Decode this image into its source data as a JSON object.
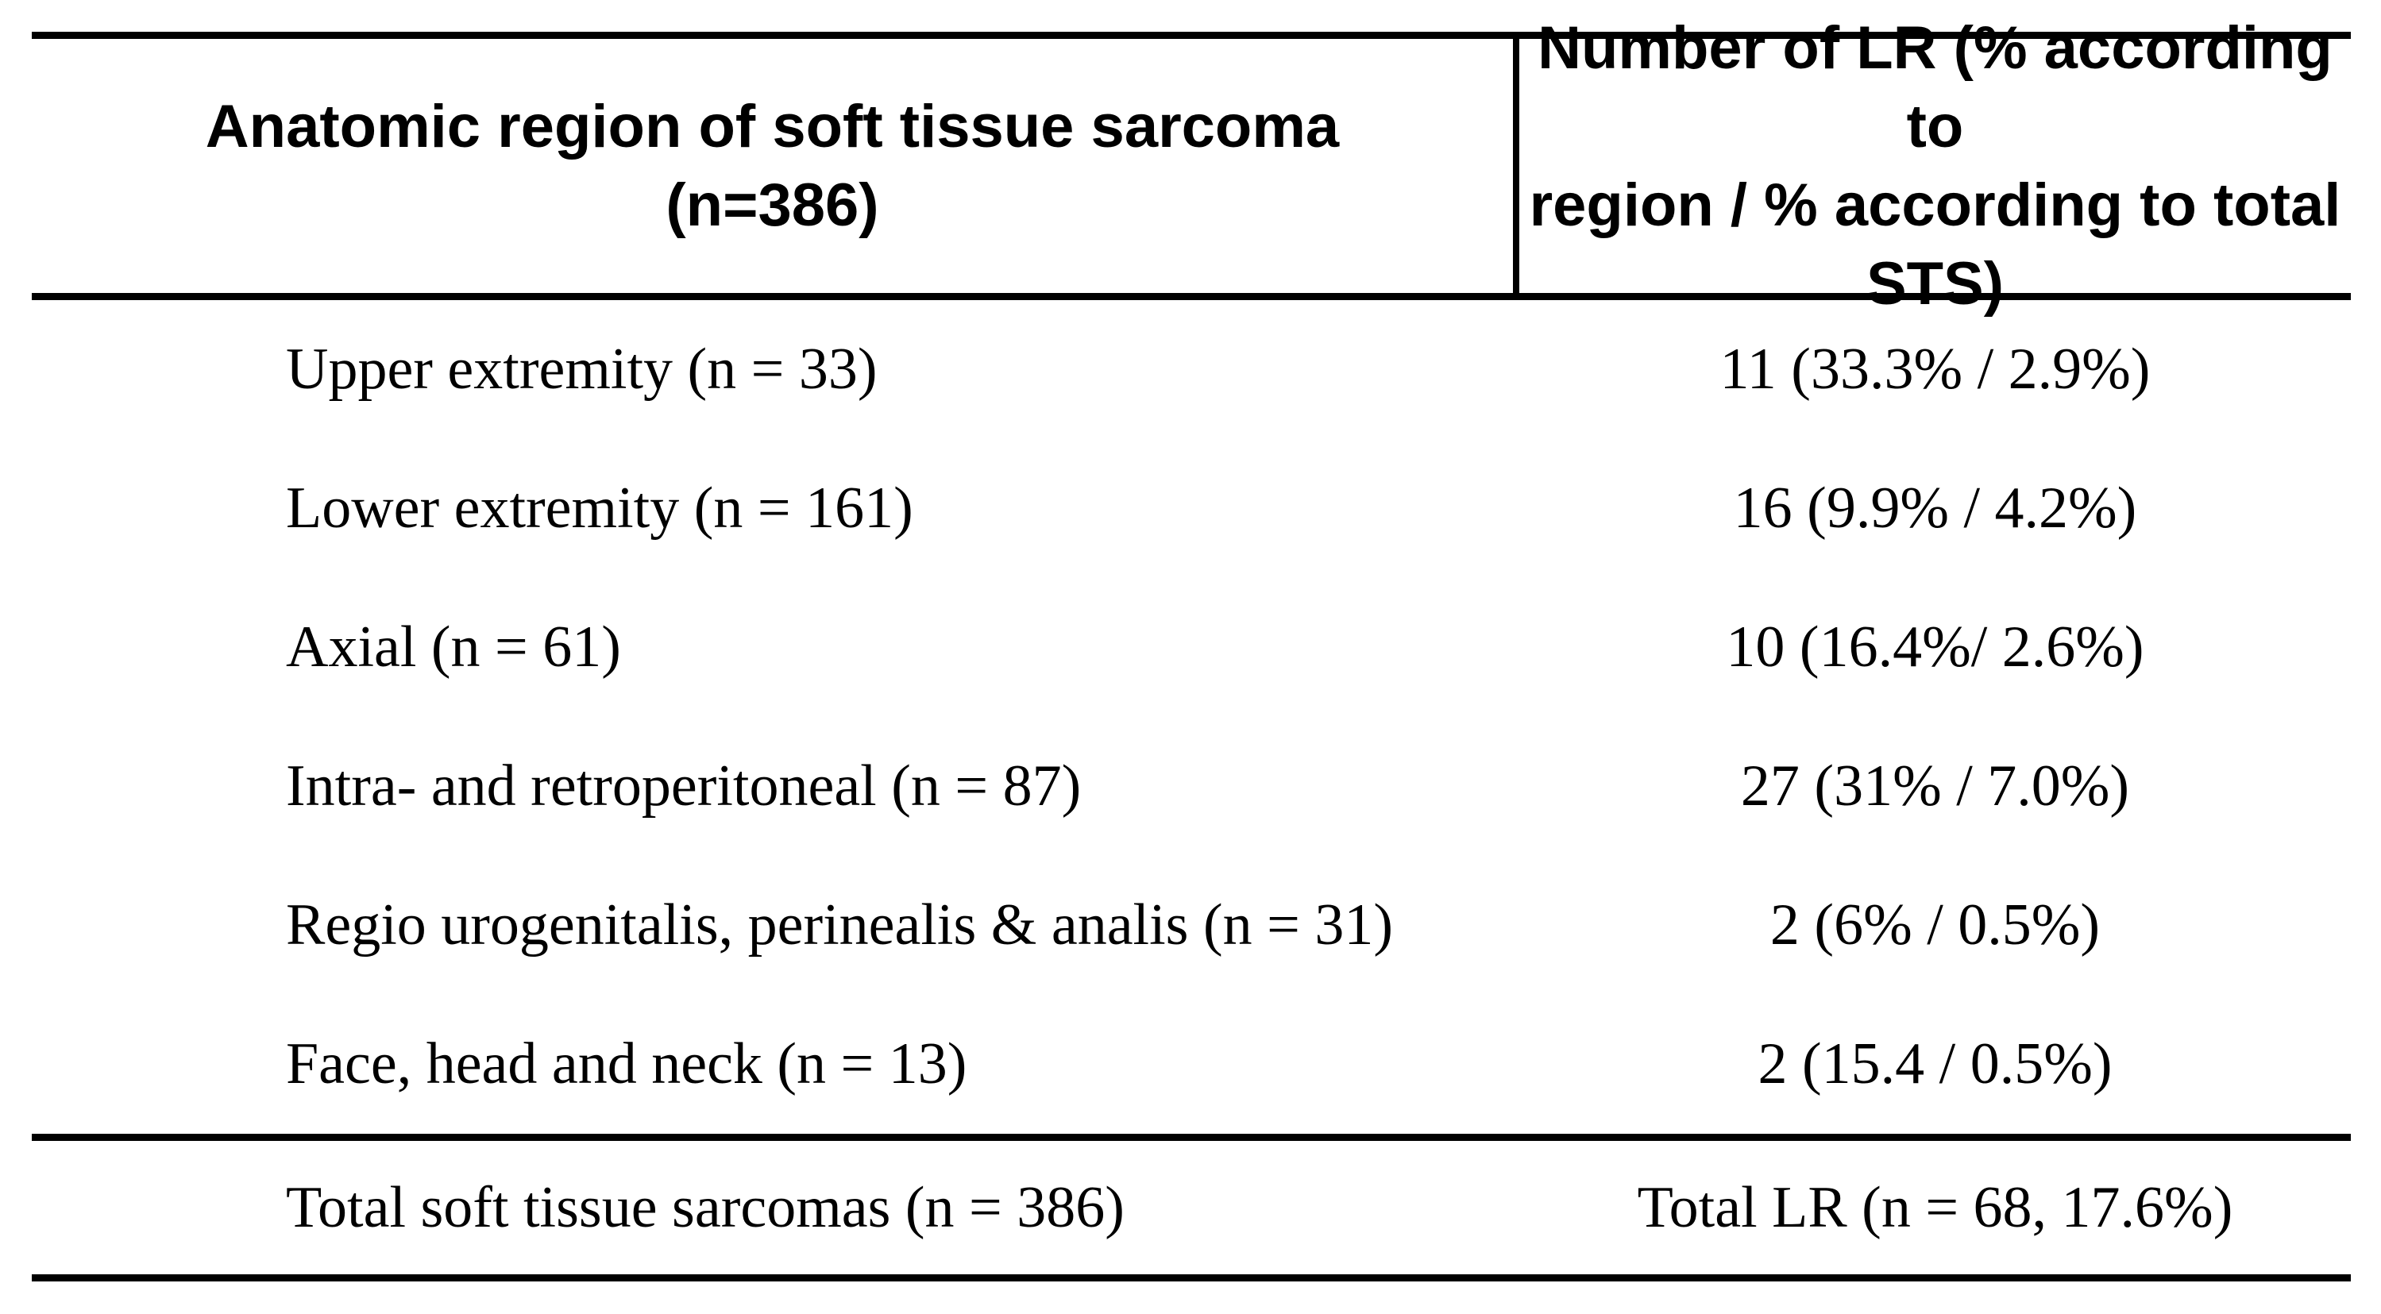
{
  "table": {
    "header": {
      "region_lines": [
        "Anatomic region of soft tissue sarcoma",
        "(n=386)"
      ],
      "lr_lines": [
        "Number of LR (% according to",
        "region / % according to total",
        "STS)"
      ]
    },
    "rows": [
      {
        "region": "Upper extremity (n = 33)",
        "lr": "11 (33.3% / 2.9%)"
      },
      {
        "region": "Lower extremity (n = 161)",
        "lr": "16 (9.9% / 4.2%)"
      },
      {
        "region": "Axial (n = 61)",
        "lr": "10 (16.4%/ 2.6%)"
      },
      {
        "region": "Intra- and retroperitoneal (n = 87)",
        "lr": "27 (31% / 7.0%)"
      },
      {
        "region": "Regio urogenitalis, perinealis & analis (n = 31)",
        "lr": "2 (6% / 0.5%)"
      },
      {
        "region": "Face, head and neck (n = 13)",
        "lr": "2 (15.4 / 0.5%)"
      }
    ],
    "total": {
      "region": "Total soft tissue sarcomas (n = 386)",
      "lr": "Total LR (n = 68, 17.6%)"
    }
  },
  "colors": {
    "text": "#000000",
    "rule": "#000000",
    "background": "#ffffff"
  }
}
